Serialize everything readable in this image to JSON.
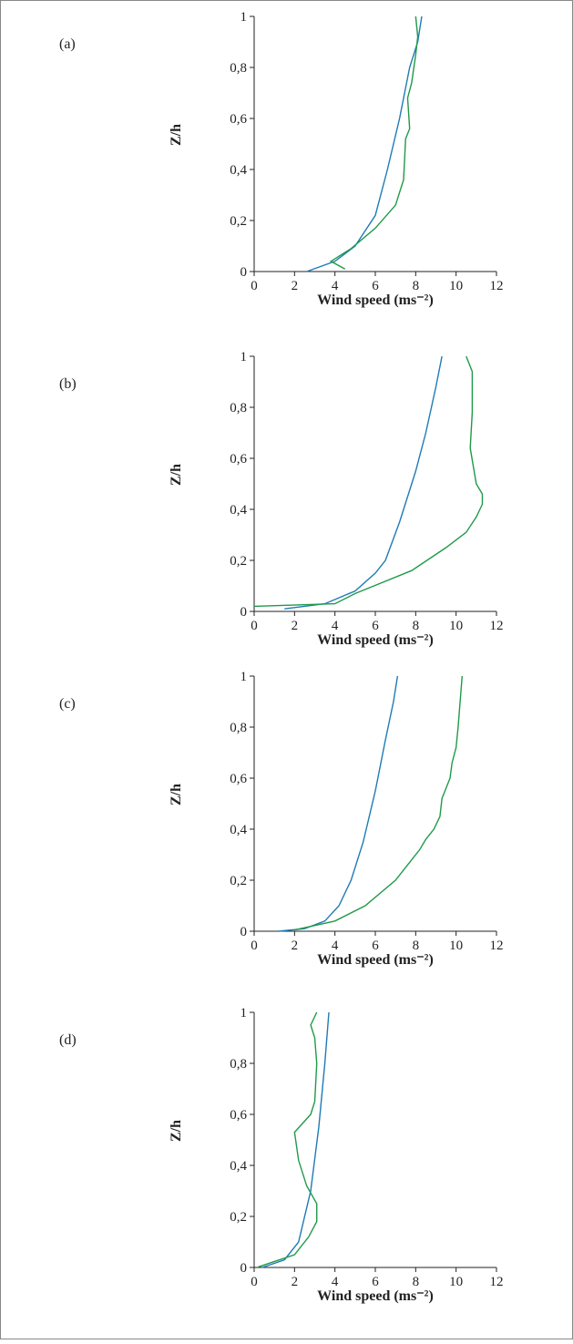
{
  "chart_data": [
    {
      "type": "line",
      "panel_label": "(a)",
      "xlabel": "Wind speed (ms⁻²)",
      "ylabel": "Z/h",
      "xlim": [
        0,
        12
      ],
      "ylim": [
        0,
        1
      ],
      "xticks": [
        0,
        2,
        4,
        6,
        8,
        10,
        12
      ],
      "yticks": [
        0,
        {
          "value": 0.2,
          "label": "0,2"
        },
        {
          "value": 0.4,
          "label": "0,4"
        },
        {
          "value": 0.6,
          "label": "0,6"
        },
        {
          "value": 0.8,
          "label": "0,8"
        },
        1
      ],
      "series": [
        {
          "color": "#1f7bb5",
          "x": [
            2.6,
            4,
            5,
            6,
            6.6,
            7.2,
            7.7,
            8.1,
            8.3
          ],
          "values": [
            0,
            0.04,
            0.1,
            0.22,
            0.4,
            0.6,
            0.8,
            0.9,
            1.0
          ]
        },
        {
          "color": "#1f9a4a",
          "x": [
            4.5,
            3.8,
            4.8,
            6,
            7,
            7.4,
            7.5,
            7.7,
            7.6,
            7.8,
            8,
            8.1,
            8
          ],
          "values": [
            0.01,
            0.04,
            0.09,
            0.17,
            0.26,
            0.36,
            0.52,
            0.56,
            0.68,
            0.74,
            0.85,
            0.92,
            1.0
          ]
        }
      ]
    },
    {
      "type": "line",
      "panel_label": "(b)",
      "xlabel": "Wind speed (ms⁻²)",
      "ylabel": "Z/h",
      "xlim": [
        0,
        12
      ],
      "ylim": [
        0,
        1
      ],
      "xticks": [
        0,
        2,
        4,
        6,
        8,
        10,
        12
      ],
      "yticks": [
        0,
        {
          "value": 0.2,
          "label": "0,2"
        },
        {
          "value": 0.4,
          "label": "0,4"
        },
        {
          "value": 0.6,
          "label": "0,6"
        },
        {
          "value": 0.8,
          "label": "0,8"
        },
        1
      ],
      "series": [
        {
          "color": "#1f7bb5",
          "x": [
            1.5,
            3.5,
            5,
            6,
            6.5,
            7.2,
            8,
            8.5,
            9,
            9.3
          ],
          "values": [
            0.01,
            0.03,
            0.08,
            0.15,
            0.2,
            0.35,
            0.55,
            0.7,
            0.88,
            1.0
          ]
        },
        {
          "color": "#1f9a4a",
          "x": [
            0,
            4,
            5,
            7.8,
            9.5,
            10.5,
            11,
            11.3,
            11.3,
            11,
            10.7,
            10.8,
            10.8,
            10.8,
            10.6,
            10.5
          ],
          "values": [
            0.02,
            0.03,
            0.07,
            0.16,
            0.25,
            0.31,
            0.37,
            0.42,
            0.46,
            0.5,
            0.64,
            0.78,
            0.86,
            0.94,
            0.98,
            1.0
          ]
        }
      ]
    },
    {
      "type": "line",
      "panel_label": "(c)",
      "xlabel": "Wind speed (ms⁻²)",
      "ylabel": "Z/h",
      "xlim": [
        0,
        12
      ],
      "ylim": [
        0,
        1
      ],
      "xticks": [
        0,
        2,
        4,
        6,
        8,
        10,
        12
      ],
      "yticks": [
        0,
        {
          "value": 0.2,
          "label": "0,2"
        },
        {
          "value": 0.4,
          "label": "0,4"
        },
        {
          "value": 0.6,
          "label": "0,6"
        },
        {
          "value": 0.8,
          "label": "0,8"
        },
        1
      ],
      "series": [
        {
          "color": "#1f7bb5",
          "x": [
            1.2,
            2.5,
            3.5,
            4.2,
            4.8,
            5.4,
            6,
            6.5,
            6.9,
            7.1
          ],
          "values": [
            0,
            0.01,
            0.04,
            0.1,
            0.2,
            0.35,
            0.55,
            0.75,
            0.9,
            1.0
          ]
        },
        {
          "color": "#1f9a4a",
          "x": [
            2,
            4,
            5.5,
            7,
            7.8,
            8.2,
            8.5,
            8.9,
            9.2,
            9.3,
            9.7,
            9.8,
            10,
            10.1,
            10.2,
            10.3
          ],
          "values": [
            0.005,
            0.04,
            0.1,
            0.2,
            0.28,
            0.32,
            0.36,
            0.4,
            0.45,
            0.52,
            0.6,
            0.66,
            0.72,
            0.8,
            0.9,
            1.0
          ]
        }
      ]
    },
    {
      "type": "line",
      "panel_label": "(d)",
      "xlabel": "Wind speed (ms⁻²)",
      "ylabel": "Z/h",
      "xlim": [
        0,
        12
      ],
      "ylim": [
        0,
        1
      ],
      "xticks": [
        0,
        2,
        4,
        6,
        8,
        10,
        12
      ],
      "yticks": [
        0,
        {
          "value": 0.2,
          "label": "0,2"
        },
        {
          "value": 0.4,
          "label": "0,4"
        },
        {
          "value": 0.6,
          "label": "0,6"
        },
        {
          "value": 0.8,
          "label": "0,8"
        },
        1
      ],
      "series": [
        {
          "color": "#1f7bb5",
          "x": [
            0.4,
            1.5,
            2.2,
            2.8,
            3.2,
            3.5,
            3.7
          ],
          "values": [
            0,
            0.03,
            0.1,
            0.3,
            0.55,
            0.8,
            1.0
          ]
        },
        {
          "color": "#1f9a4a",
          "x": [
            0.2,
            2,
            2.7,
            3.1,
            3.1,
            2.6,
            2.2,
            2,
            2.8,
            3,
            3.1,
            3,
            2.8,
            3.1
          ],
          "values": [
            0.002,
            0.05,
            0.12,
            0.18,
            0.25,
            0.32,
            0.42,
            0.53,
            0.6,
            0.65,
            0.8,
            0.9,
            0.95,
            1.0
          ]
        }
      ]
    }
  ]
}
